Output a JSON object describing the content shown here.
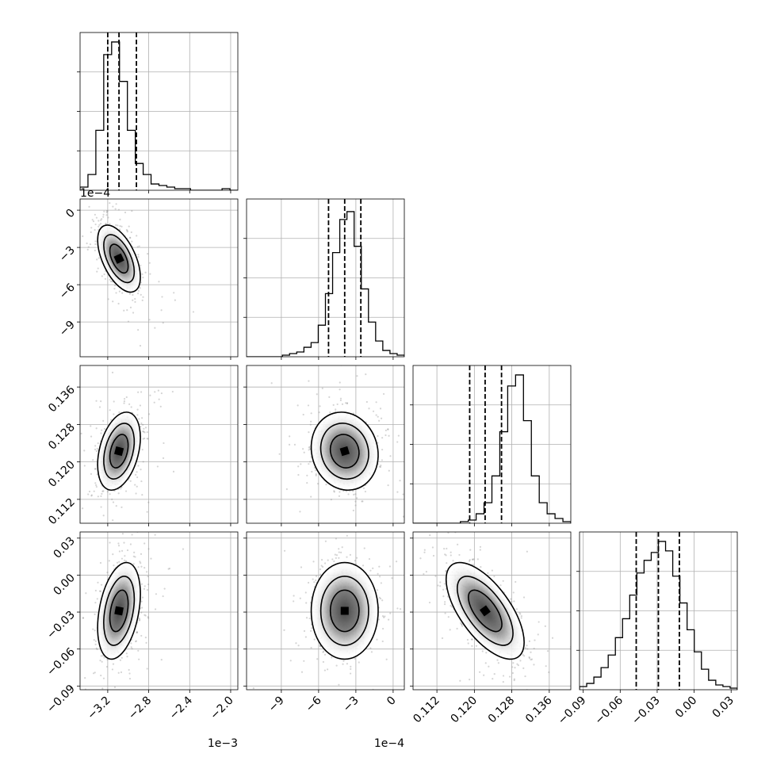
{
  "chart_data": {
    "type": "corner",
    "n_params": 4,
    "grid": true,
    "params": [
      {
        "range": [
          -3.47,
          -1.93
        ],
        "ticks": [
          -3.2,
          -2.8,
          -2.4,
          -2.0
        ],
        "tick_labels": [
          "−3.2",
          "−2.8",
          "−2.4",
          "−2.0"
        ],
        "offset_label": "1e−3",
        "quantiles": [
          -3.2,
          -3.09,
          -2.92
        ],
        "median": -3.09,
        "sigma": 0.085,
        "hist_heights": [
          0.02,
          0.1,
          0.38,
          0.86,
          0.94,
          0.69,
          0.38,
          0.17,
          0.1,
          0.04,
          0.03,
          0.02,
          0.01,
          0.01,
          0.0,
          0.0,
          0.0,
          0.0,
          0.01,
          0.0
        ]
      },
      {
        "range": [
          -11.8,
          0.9
        ],
        "ticks": [
          -9,
          -6,
          -3,
          0
        ],
        "tick_labels": [
          "−9",
          "−6",
          "−3",
          "0"
        ],
        "offset_label": "1e−4",
        "quantiles": [
          -5.2,
          -3.9,
          -2.6
        ],
        "median": -3.9,
        "sigma": 1.1,
        "hist_heights": [
          0.0,
          0.0,
          0.0,
          0.0,
          0.0,
          0.01,
          0.02,
          0.03,
          0.06,
          0.09,
          0.2,
          0.4,
          0.66,
          0.87,
          0.92,
          0.7,
          0.43,
          0.22,
          0.1,
          0.04,
          0.02,
          0.01
        ]
      },
      {
        "range": [
          0.1069,
          0.1406
        ],
        "ticks": [
          0.112,
          0.12,
          0.128,
          0.136
        ],
        "tick_labels": [
          "0.112",
          "0.120",
          "0.128",
          "0.136"
        ],
        "offset_label": "",
        "quantiles": [
          0.119,
          0.1223,
          0.1258
        ],
        "median": 0.1223,
        "sigma": 0.0034,
        "hist_heights": [
          0.0,
          0.0,
          0.0,
          0.0,
          0.0,
          0.0,
          0.01,
          0.02,
          0.06,
          0.13,
          0.3,
          0.58,
          0.87,
          0.94,
          0.65,
          0.3,
          0.13,
          0.06,
          0.03,
          0.01
        ]
      },
      {
        "range": [
          -0.093,
          0.035
        ],
        "ticks": [
          -0.09,
          -0.06,
          -0.03,
          0.0,
          0.03
        ],
        "tick_labels": [
          "−0.09",
          "−0.06",
          "−0.03",
          "0.00",
          "0.03"
        ],
        "offset_label": "",
        "quantiles": [
          -0.047,
          -0.029,
          -0.012
        ],
        "median": -0.029,
        "sigma": 0.016,
        "hist_heights": [
          0.02,
          0.04,
          0.08,
          0.14,
          0.22,
          0.33,
          0.45,
          0.6,
          0.74,
          0.82,
          0.87,
          0.94,
          0.88,
          0.72,
          0.55,
          0.38,
          0.24,
          0.13,
          0.06,
          0.03,
          0.02,
          0.01
        ]
      }
    ],
    "correlations": [
      [
        1,
        0,
        0,
        0
      ],
      [
        -0.55,
        1,
        0,
        0
      ],
      [
        0.35,
        -0.1,
        1,
        0
      ],
      [
        0.35,
        0.0,
        -0.65,
        1
      ]
    ],
    "scatter_points": 700
  }
}
